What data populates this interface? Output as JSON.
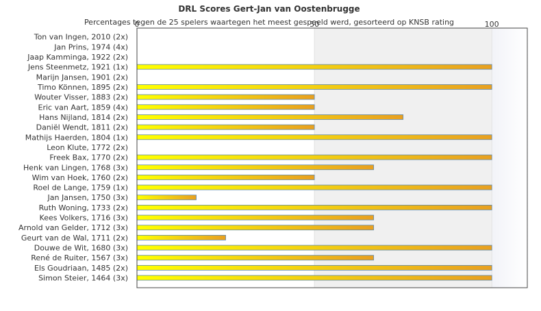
{
  "chart_data": {
    "type": "bar",
    "orientation": "horizontal",
    "title": "DRL Scores Gert-Jan van Oostenbrugge",
    "subtitle": "Percentages tegen de 25 spelers waartegen het meest gespeeld werd, gesorteerd op KNSB rating",
    "xlim": [
      0,
      110
    ],
    "xticks": [
      0,
      50,
      100
    ],
    "xtick_labels": [
      "0",
      "50",
      "100"
    ],
    "grid": "vertical bands",
    "categories": [
      "Ton van Ingen, 2010 (2x)",
      "Jan Prins, 1974 (4x)",
      "Jaap Kamminga, 1922 (2x)",
      "Jens Steenmetz, 1921 (1x)",
      "Marijn Jansen, 1901 (2x)",
      "Timo Können, 1895 (2x)",
      "Wouter Visser, 1883 (2x)",
      "Eric van Aart, 1859 (4x)",
      "Hans Nijland, 1814 (2x)",
      "Daniël Wendt, 1811 (2x)",
      "Mathijs Haerden, 1804 (1x)",
      "Leon Klute, 1772 (2x)",
      "Freek Bax, 1770 (2x)",
      "Henk van Lingen, 1768 (3x)",
      "Wim van Hoek, 1760 (2x)",
      "Roel de Lange, 1759 (1x)",
      "Jan Jansen, 1750 (3x)",
      "Ruth Woning, 1733 (2x)",
      "Kees Volkers, 1716 (3x)",
      "Arnold van Gelder, 1712 (3x)",
      "Geurt van de Wal, 1711 (2x)",
      "Douwe de Wit, 1680 (3x)",
      "René de Ruiter, 1567 (3x)",
      "Els Goudriaan, 1485 (2x)",
      "Simon Steier, 1464 (3x)"
    ],
    "values": [
      0,
      0,
      0,
      100,
      0,
      100,
      50,
      50,
      75,
      50,
      100,
      0,
      100,
      66.7,
      50,
      100,
      16.7,
      100,
      66.7,
      66.7,
      25,
      100,
      66.7,
      100,
      100
    ],
    "colors": {
      "bar_start": "#ffff00",
      "bar_end": "#e8a020",
      "bar_border": "#5b8ab5",
      "band": "#f0f0f0",
      "band_edge": "#f6f7fb",
      "axis": "#444444"
    }
  }
}
